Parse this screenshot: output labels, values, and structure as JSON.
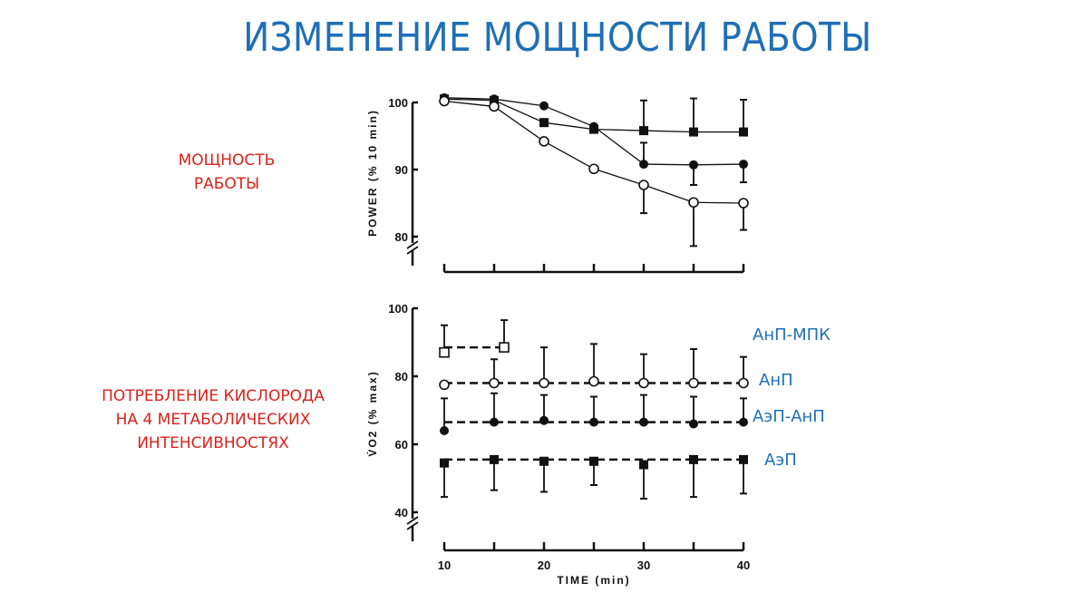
{
  "slide": {
    "title": "ИЗМЕНЕНИЕ МОЩНОСТИ РАБОТЫ",
    "left_labels": {
      "top": [
        "МОЩНОСТЬ",
        "РАБОТЫ"
      ],
      "bottom": [
        "ПОТРЕБЛЕНИЕ КИСЛОРОДА",
        "НА 4 МЕТАБОЛИЧЕСКИХ",
        "ИНТЕНСИВНОСТЯХ"
      ]
    },
    "legend": {
      "anp_mpk": "АнП-МПК",
      "anp": "АнП",
      "aep_anp": "АэП-АнП",
      "aep": "АэП"
    },
    "colors": {
      "title": "#1f6fb5",
      "side_labels": "#d9221c",
      "legend": "#1f6fb5",
      "ink": "#111111"
    }
  },
  "chart_data": [
    {
      "type": "line",
      "title": "POWER",
      "ylabel": "POWER (% 10 min)",
      "xlabel": "",
      "x": [
        10,
        15,
        20,
        25,
        30,
        35,
        40
      ],
      "ylim": [
        80,
        100
      ],
      "yticks": [
        80,
        90,
        100
      ],
      "axis_break": true,
      "series": [
        {
          "name": "filled-square",
          "marker": "square-filled",
          "values": [
            100.5,
            100.3,
            97.0,
            96.0,
            95.8,
            95.6,
            95.6
          ],
          "err_up": [
            null,
            null,
            null,
            null,
            4.5,
            5.0,
            4.8
          ]
        },
        {
          "name": "filled-circle",
          "marker": "circle-filled",
          "values": [
            100.7,
            100.5,
            99.5,
            96.4,
            90.8,
            90.7,
            90.8
          ],
          "err_up": [
            null,
            null,
            null,
            null,
            3.2,
            null,
            null
          ],
          "err_down": [
            null,
            null,
            null,
            null,
            null,
            3.0,
            2.7
          ]
        },
        {
          "name": "open-circle",
          "marker": "circle-open",
          "values": [
            100.2,
            99.4,
            94.2,
            90.1,
            87.7,
            85.1,
            85.0
          ],
          "err_down": [
            null,
            null,
            null,
            null,
            4.2,
            6.5,
            4.0
          ]
        }
      ]
    },
    {
      "type": "line",
      "title": "VO2",
      "ylabel": "V̇O2 (% max)",
      "xlabel": "TIME (min)",
      "x": [
        10,
        15,
        20,
        25,
        30,
        35,
        40
      ],
      "xticks": [
        10,
        20,
        30,
        40
      ],
      "ylim": [
        40,
        100
      ],
      "yticks": [
        40,
        60,
        80,
        100
      ],
      "axis_break": true,
      "line_style": "dashed",
      "series": [
        {
          "name": "АнП-МПК",
          "marker": "square-open",
          "x": [
            10,
            16
          ],
          "values": [
            87,
            88.5
          ],
          "err_up": [
            8,
            8
          ]
        },
        {
          "name": "АнП",
          "marker": "circle-open",
          "values": [
            77.5,
            78,
            78,
            78.5,
            78,
            78,
            78
          ],
          "err_up": [
            null,
            7,
            10.5,
            11,
            8.5,
            10,
            7.7
          ]
        },
        {
          "name": "АэП-АнП",
          "marker": "circle-filled",
          "values": [
            64,
            66.5,
            67,
            66.5,
            66.5,
            66,
            66.5
          ],
          "err_up": [
            9.5,
            8.5,
            7.5,
            7.5,
            8,
            8,
            7
          ]
        },
        {
          "name": "АэП",
          "marker": "square-filled",
          "values": [
            54.5,
            55.5,
            55,
            55,
            54,
            55.5,
            55.5
          ],
          "err_down": [
            10,
            9,
            9,
            7,
            10,
            11,
            10
          ]
        }
      ]
    }
  ]
}
